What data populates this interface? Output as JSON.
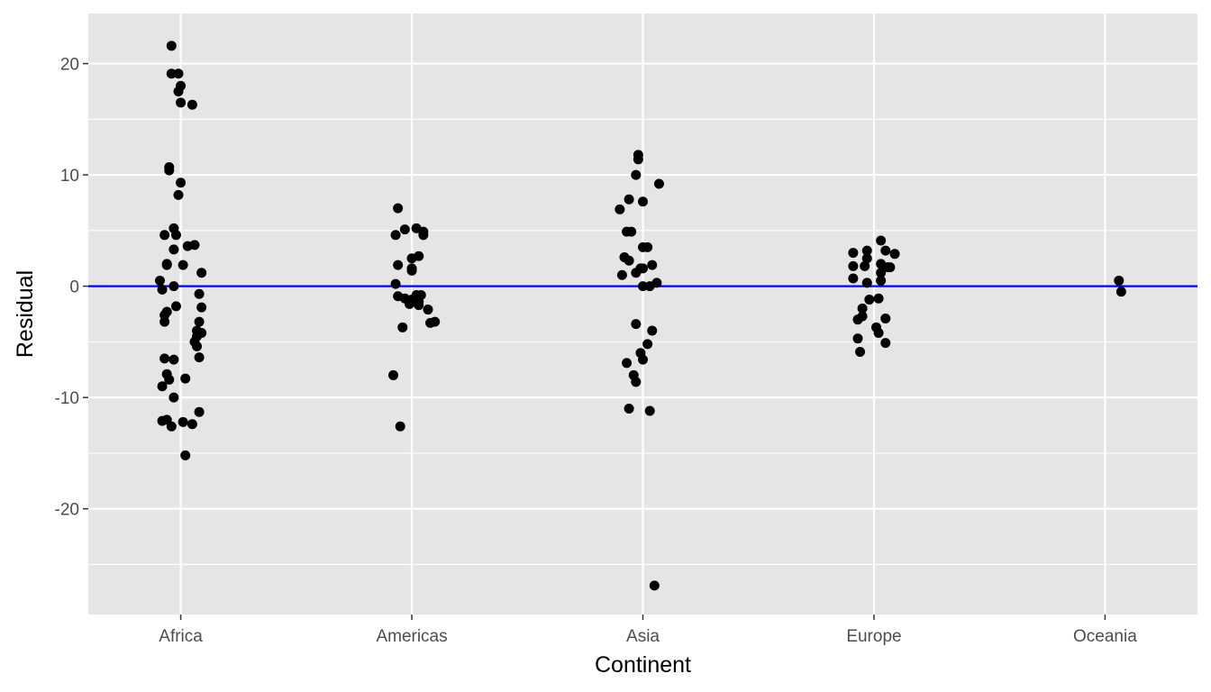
{
  "chart_data": {
    "type": "scatter",
    "title": "",
    "xlabel": "Continent",
    "ylabel": "Residual",
    "categories": [
      "Africa",
      "Americas",
      "Asia",
      "Europe",
      "Oceania"
    ],
    "ylim": [
      -29.5,
      24.5
    ],
    "yticks": [
      -20,
      -10,
      0,
      10,
      20
    ],
    "yticklabels": [
      "-20",
      "-10",
      "0",
      "10",
      "20"
    ],
    "grid": true,
    "reference_line": {
      "y": 0,
      "color": "#0000ff"
    },
    "colors": {
      "panel": "#e5e5e5",
      "grid": "#ffffff",
      "point": "#000000"
    },
    "series": [
      {
        "category": "Africa",
        "points": [
          [
            -0.04,
            21.6
          ],
          [
            -0.04,
            19.1
          ],
          [
            -0.01,
            19.1
          ],
          [
            -0.01,
            17.5
          ],
          [
            0.0,
            18.0
          ],
          [
            0.0,
            16.5
          ],
          [
            0.05,
            16.3
          ],
          [
            -0.05,
            10.4
          ],
          [
            -0.05,
            10.7
          ],
          [
            0.0,
            9.3
          ],
          [
            -0.01,
            8.2
          ],
          [
            -0.03,
            5.2
          ],
          [
            -0.07,
            4.6
          ],
          [
            -0.02,
            4.6
          ],
          [
            0.03,
            3.6
          ],
          [
            0.06,
            3.7
          ],
          [
            -0.03,
            3.3
          ],
          [
            -0.06,
            2.0
          ],
          [
            -0.06,
            1.9
          ],
          [
            0.01,
            1.9
          ],
          [
            0.09,
            1.2
          ],
          [
            -0.09,
            0.5
          ],
          [
            -0.08,
            -0.3
          ],
          [
            -0.03,
            0.0
          ],
          [
            0.08,
            -0.7
          ],
          [
            -0.02,
            -1.8
          ],
          [
            0.09,
            -1.9
          ],
          [
            -0.06,
            -2.3
          ],
          [
            -0.07,
            -2.6
          ],
          [
            -0.07,
            -3.2
          ],
          [
            0.08,
            -3.2
          ],
          [
            0.07,
            -4.0
          ],
          [
            0.09,
            -4.2
          ],
          [
            0.07,
            -4.5
          ],
          [
            0.06,
            -5.0
          ],
          [
            0.07,
            -5.4
          ],
          [
            0.08,
            -6.4
          ],
          [
            -0.07,
            -6.5
          ],
          [
            -0.03,
            -6.6
          ],
          [
            -0.06,
            -7.9
          ],
          [
            -0.05,
            -8.4
          ],
          [
            0.02,
            -8.3
          ],
          [
            -0.08,
            -9.0
          ],
          [
            -0.03,
            -10.0
          ],
          [
            0.08,
            -11.3
          ],
          [
            -0.08,
            -12.1
          ],
          [
            -0.06,
            -12.0
          ],
          [
            0.01,
            -12.2
          ],
          [
            0.05,
            -12.4
          ],
          [
            -0.04,
            -12.6
          ],
          [
            0.02,
            -15.2
          ]
        ]
      },
      {
        "category": "Americas",
        "points": [
          [
            -0.06,
            7.0
          ],
          [
            -0.03,
            5.1
          ],
          [
            0.02,
            5.2
          ],
          [
            0.05,
            4.9
          ],
          [
            -0.07,
            4.6
          ],
          [
            0.05,
            4.6
          ],
          [
            0.03,
            2.7
          ],
          [
            0.0,
            2.5
          ],
          [
            -0.06,
            1.9
          ],
          [
            0.0,
            1.6
          ],
          [
            0.0,
            1.4
          ],
          [
            -0.07,
            0.2
          ],
          [
            -0.06,
            -0.9
          ],
          [
            -0.03,
            -1.1
          ],
          [
            0.02,
            -0.8
          ],
          [
            0.04,
            -0.8
          ],
          [
            0.0,
            -1.2
          ],
          [
            0.03,
            -1.4
          ],
          [
            -0.01,
            -1.6
          ],
          [
            0.03,
            -1.7
          ],
          [
            0.07,
            -2.1
          ],
          [
            0.08,
            -3.3
          ],
          [
            0.1,
            -3.2
          ],
          [
            -0.04,
            -3.7
          ],
          [
            -0.08,
            -8.0
          ],
          [
            -0.05,
            -12.6
          ]
        ]
      },
      {
        "category": "Asia",
        "points": [
          [
            -0.02,
            11.8
          ],
          [
            -0.02,
            11.4
          ],
          [
            0.07,
            9.2
          ],
          [
            -0.03,
            10.0
          ],
          [
            -0.06,
            7.8
          ],
          [
            0.0,
            7.6
          ],
          [
            -0.1,
            6.9
          ],
          [
            -0.07,
            4.9
          ],
          [
            -0.05,
            4.9
          ],
          [
            -0.08,
            2.6
          ],
          [
            -0.06,
            2.3
          ],
          [
            0.0,
            3.5
          ],
          [
            0.02,
            3.5
          ],
          [
            0.04,
            1.9
          ],
          [
            -0.01,
            1.6
          ],
          [
            -0.03,
            1.2
          ],
          [
            0.0,
            1.6
          ],
          [
            -0.09,
            1.0
          ],
          [
            0.0,
            0.0
          ],
          [
            0.03,
            0.0
          ],
          [
            0.06,
            0.3
          ],
          [
            -0.03,
            -3.4
          ],
          [
            0.04,
            -4.0
          ],
          [
            0.02,
            -5.2
          ],
          [
            -0.01,
            -6.0
          ],
          [
            0.0,
            -6.6
          ],
          [
            -0.07,
            -6.9
          ],
          [
            -0.04,
            -8.0
          ],
          [
            -0.03,
            -8.6
          ],
          [
            -0.06,
            -11.0
          ],
          [
            0.03,
            -11.2
          ],
          [
            0.05,
            -26.9
          ]
        ]
      },
      {
        "category": "Europe",
        "points": [
          [
            0.03,
            4.1
          ],
          [
            -0.09,
            3.0
          ],
          [
            -0.03,
            3.2
          ],
          [
            0.05,
            3.2
          ],
          [
            0.09,
            2.9
          ],
          [
            -0.03,
            2.5
          ],
          [
            0.03,
            2.0
          ],
          [
            -0.09,
            1.8
          ],
          [
            -0.04,
            1.8
          ],
          [
            0.06,
            1.7
          ],
          [
            0.07,
            1.7
          ],
          [
            0.03,
            1.2
          ],
          [
            -0.09,
            0.7
          ],
          [
            -0.03,
            0.3
          ],
          [
            0.03,
            0.5
          ],
          [
            -0.02,
            -1.2
          ],
          [
            0.02,
            -1.1
          ],
          [
            -0.05,
            -2.0
          ],
          [
            -0.07,
            -3.0
          ],
          [
            -0.05,
            -2.7
          ],
          [
            0.05,
            -2.9
          ],
          [
            0.01,
            -3.7
          ],
          [
            0.02,
            -4.2
          ],
          [
            -0.07,
            -4.7
          ],
          [
            0.05,
            -5.1
          ],
          [
            -0.06,
            -5.9
          ]
        ]
      },
      {
        "category": "Oceania",
        "points": [
          [
            0.06,
            0.5
          ],
          [
            0.07,
            -0.5
          ]
        ]
      }
    ]
  }
}
